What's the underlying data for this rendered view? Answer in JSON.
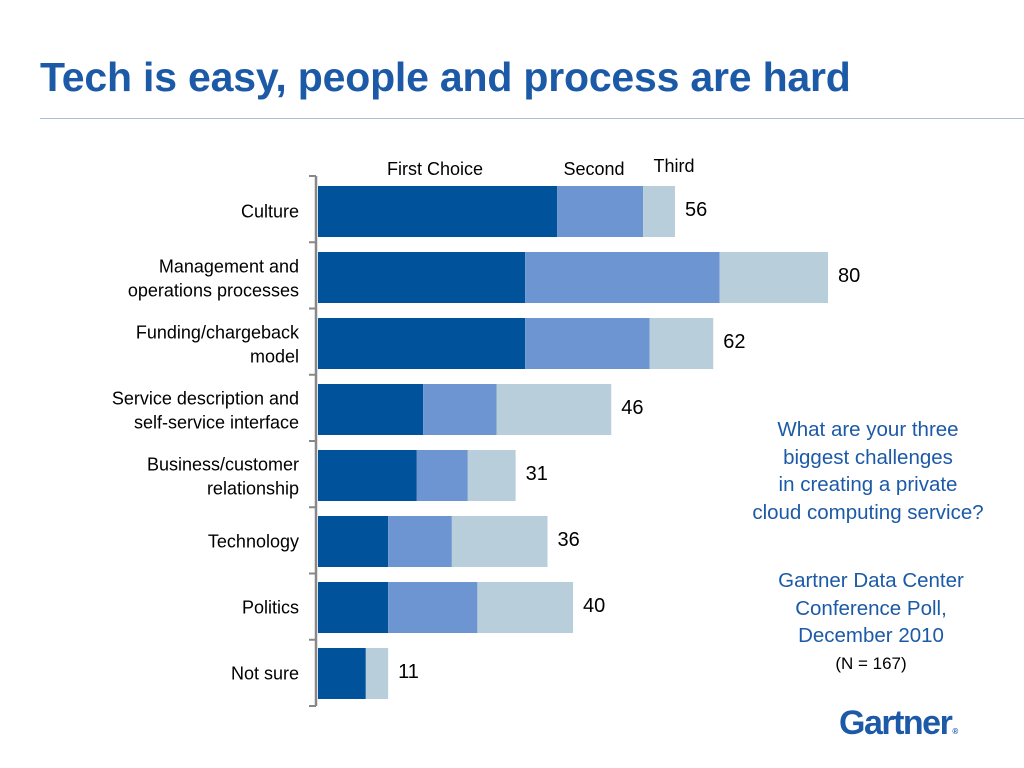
{
  "title": "Tech is easy, people and process are hard",
  "colors": {
    "title": "#1c5aa7",
    "first": "#00529b",
    "second": "#6d95d2",
    "third": "#b8cedb",
    "axis": "#888888"
  },
  "chart_data": {
    "type": "bar",
    "orientation": "horizontal",
    "stacked": true,
    "title": "",
    "xlabel": "",
    "ylabel": "",
    "xlim": [
      0,
      100
    ],
    "legend_position": "top",
    "grid": false,
    "categories": [
      [
        "Culture"
      ],
      [
        "Management and",
        "operations processes"
      ],
      [
        "Funding/chargeback",
        "model"
      ],
      [
        "Service description and",
        "self-service interface"
      ],
      [
        "Business/customer",
        "relationship"
      ],
      [
        "Technology"
      ],
      [
        "Politics"
      ],
      [
        "Not sure"
      ]
    ],
    "series": [
      {
        "name": "First Choice",
        "color": "#00529b",
        "values": [
          37.5,
          32.5,
          32.5,
          16.5,
          15.5,
          11,
          11,
          7.5
        ]
      },
      {
        "name": "Second",
        "color": "#6d95d2",
        "values": [
          13.5,
          30.5,
          19.5,
          11.5,
          8,
          10,
          14,
          0
        ]
      },
      {
        "name": "Third",
        "color": "#b8cedb",
        "values": [
          5,
          17,
          10,
          18,
          7.5,
          15,
          15,
          3.5
        ]
      }
    ],
    "totals": [
      "56",
      "80",
      "62",
      "46",
      "31",
      "36",
      "40",
      "11"
    ]
  },
  "annotation": {
    "question": [
      "What are your three",
      "biggest challenges",
      "in creating a private",
      "cloud computing service?"
    ],
    "source": [
      "Gartner Data Center",
      "Conference Poll,",
      "December 2010"
    ],
    "sample": "(N = 167)"
  },
  "logo": {
    "text": "Gartner",
    "reg": "®"
  }
}
